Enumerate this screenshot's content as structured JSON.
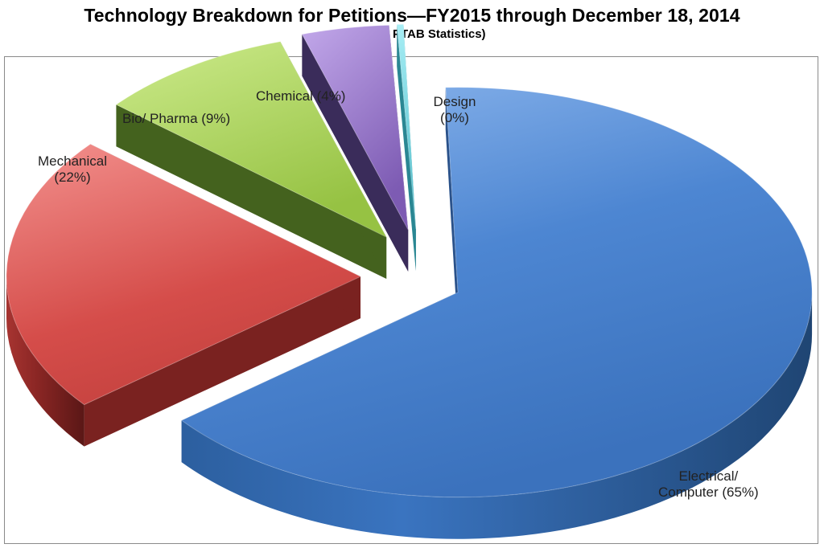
{
  "chart_data": {
    "type": "pie",
    "title": "Technology Breakdown for Petitions—FY2015 through December 18, 2014",
    "subtitle": "(12/18/14 PTAB Statistics)",
    "labels": [
      "Electrical/ Computer (65%)",
      "Mechanical (22%)",
      "Bio/ Pharma (9%)",
      "Chemical (4%)",
      "Design (0%)"
    ],
    "slices": [
      {
        "name": "Electrical/ Computer",
        "value": 65,
        "color": "#3d78c7"
      },
      {
        "name": "Mechanical",
        "value": 22,
        "color": "#d04a47"
      },
      {
        "name": "Bio/ Pharma",
        "value": 9,
        "color": "#a7cf55"
      },
      {
        "name": "Chemical",
        "value": 4,
        "color": "#8d6cc0"
      },
      {
        "name": "Design",
        "value": 0.3,
        "color": "#4fc3cf"
      }
    ],
    "exploded": true,
    "three_d": true
  }
}
